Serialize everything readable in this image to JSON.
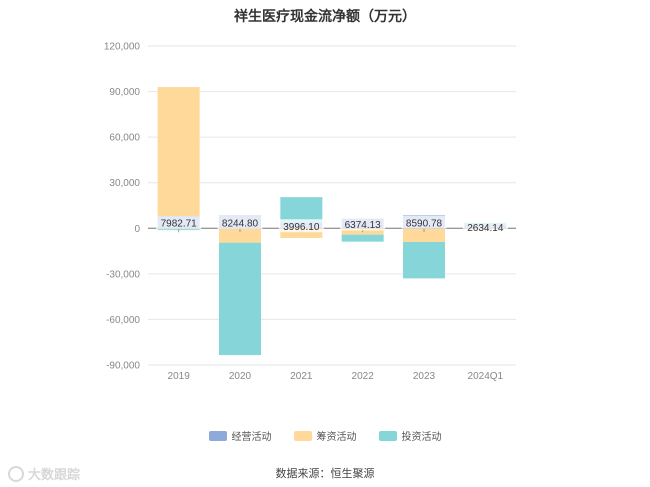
{
  "title": "祥生医疗现金流净额（万元）",
  "source": "数据来源：恒生聚源",
  "watermark": "大数跟踪",
  "colors": {
    "operating": "#8eaadb",
    "financing": "#ffd99a",
    "investing": "#86d6d9",
    "grid": "#e6e6e6",
    "axis_text": "#888888"
  },
  "chart_data": {
    "type": "bar",
    "stacked": true,
    "categories": [
      "2019",
      "2020",
      "2021",
      "2022",
      "2023",
      "2024Q1"
    ],
    "series": [
      {
        "name": "经营活动",
        "values": [
          7982.71,
          8244.8,
          3996.1,
          6374.13,
          8590.78,
          2634.14
        ]
      },
      {
        "name": "筹资活动",
        "values": [
          85000,
          -9500,
          -6400,
          -4200,
          -9000,
          -200
        ]
      },
      {
        "name": "投资活动",
        "values": [
          -1200,
          -74000,
          16500,
          -4600,
          -24000,
          1000
        ]
      }
    ],
    "data_labels": [
      "7982.71",
      "8244.80",
      "3996.10",
      "6374.13",
      "8590.78",
      "2634.14"
    ],
    "ylim": [
      -90000,
      120000
    ],
    "yticks": [
      120000,
      90000,
      60000,
      30000,
      0,
      -30000,
      -60000,
      -90000
    ],
    "ytick_labels": [
      "120,000",
      "90,000",
      "60,000",
      "30,000",
      "0",
      "-30,000",
      "-60,000",
      "-90,000"
    ],
    "grid": true,
    "legend_position": "bottom"
  }
}
